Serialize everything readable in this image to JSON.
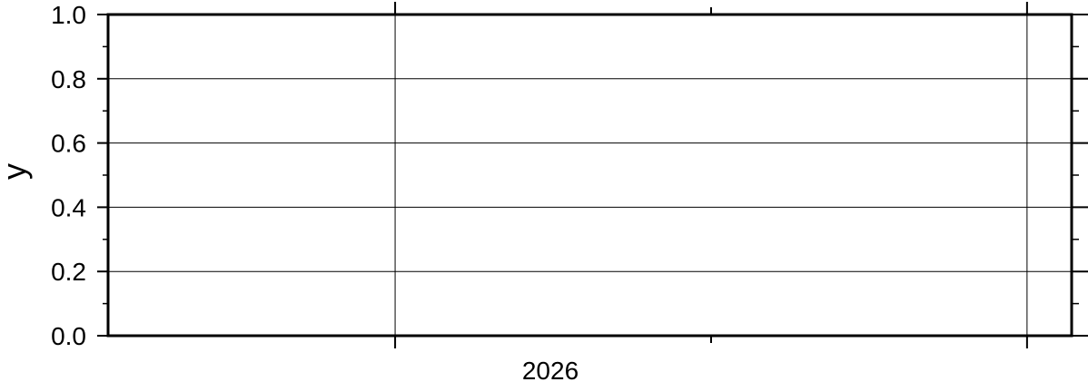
{
  "chart_data": {
    "type": "line",
    "title": "",
    "xlabel": "",
    "ylabel": "y",
    "ylim": [
      0.0,
      1.0
    ],
    "y_ticks": [
      {
        "value": 0.0,
        "label": "0.0"
      },
      {
        "value": 0.2,
        "label": "0.2"
      },
      {
        "value": 0.4,
        "label": "0.4"
      },
      {
        "value": 0.6,
        "label": "0.6"
      },
      {
        "value": 0.8,
        "label": "0.8"
      },
      {
        "value": 1.0,
        "label": "1.0"
      }
    ],
    "x_axis": {
      "scale": "time",
      "year_label": "2026",
      "gridlines_at_fraction_of_range": [
        0.2979,
        0.9537
      ],
      "tick_at_fraction_of_range": [
        0.2979,
        0.6258,
        0.9537
      ]
    },
    "grid": true,
    "series": []
  }
}
